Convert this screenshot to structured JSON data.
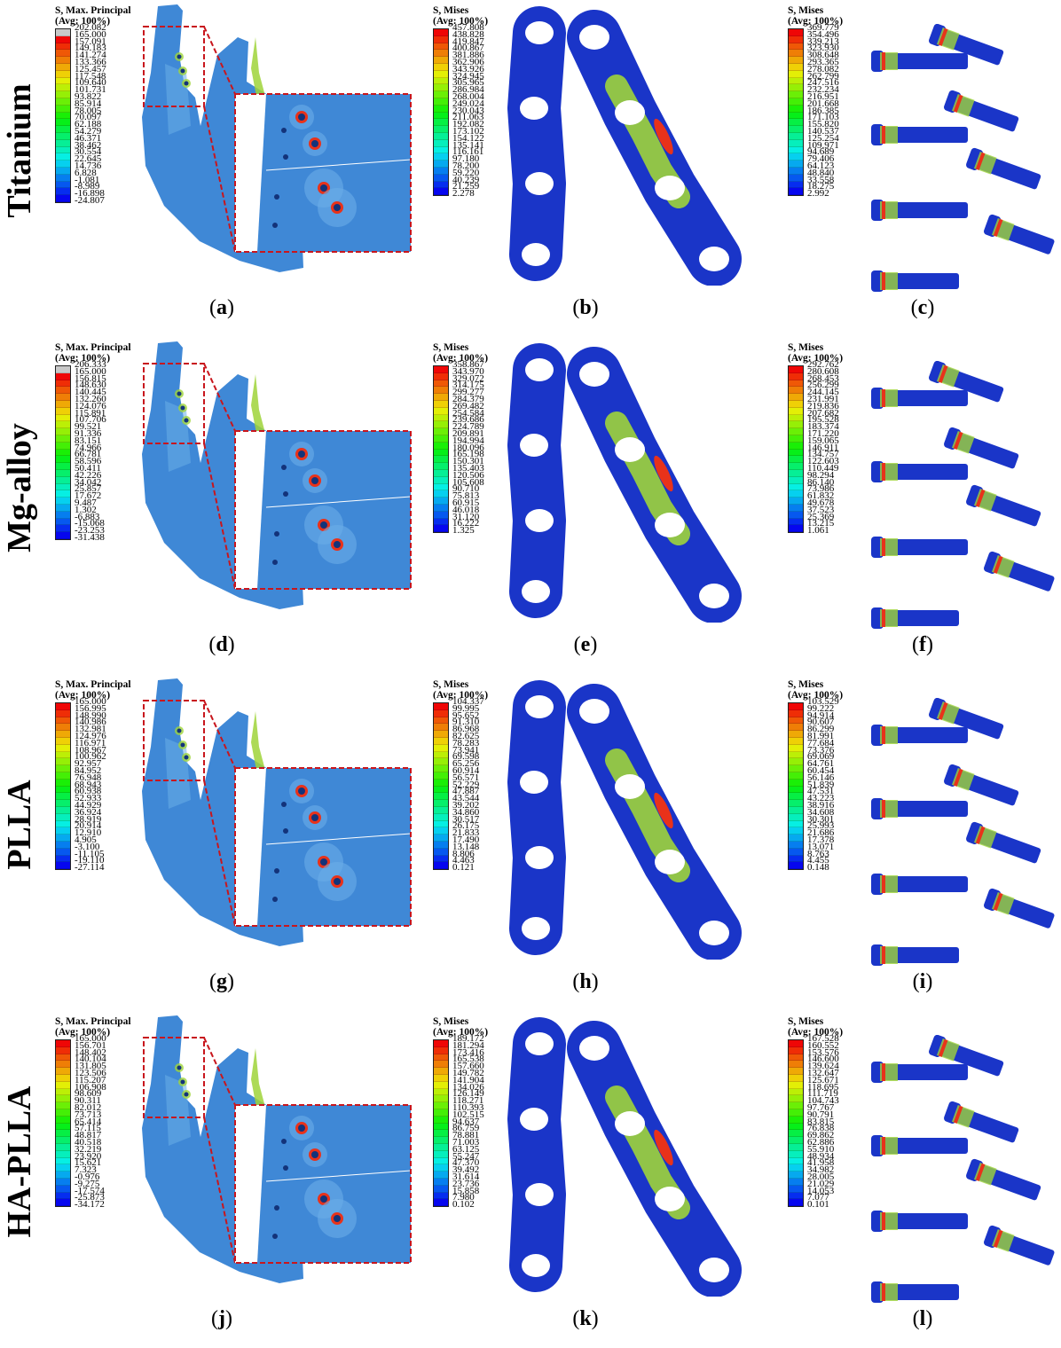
{
  "rows": [
    {
      "label": "Titanium",
      "panels": [
        {
          "letter": "a",
          "legend": {
            "title1": "S, Max. Principal",
            "title2": "(Avg: 100%)",
            "values": [
              "202.082",
              "165.000",
              "157.091",
              "149.183",
              "141.274",
              "133.366",
              "125.457",
              "117.548",
              "109.640",
              "101.731",
              "93.822",
              "85.914",
              "78.005",
              "70.097",
              "62.188",
              "54.279",
              "46.371",
              "38.462",
              "30.554",
              "22.645",
              "14.736",
              "6.828",
              "-1.081",
              "-8.989",
              "-16.898",
              "-24.807"
            ]
          }
        },
        {
          "letter": "b",
          "legend": {
            "title1": "S, Mises",
            "title2": "(Avg: 100%)",
            "values": [
              "457.808",
              "438.828",
              "419.847",
              "400.867",
              "381.886",
              "362.906",
              "343.926",
              "324.945",
              "305.965",
              "286.984",
              "268.004",
              "249.024",
              "230.043",
              "211.063",
              "192.082",
              "173.102",
              "154.122",
              "135.141",
              "116.161",
              "97.180",
              "78.200",
              "59.220",
              "40.239",
              "21.259",
              "2.278"
            ]
          }
        },
        {
          "letter": "c",
          "legend": {
            "title1": "S, Mises",
            "title2": "(Avg: 100%)",
            "values": [
              "369.779",
              "354.496",
              "339.213",
              "323.930",
              "308.648",
              "293.365",
              "278.082",
              "262.799",
              "247.516",
              "232.234",
              "216.951",
              "201.668",
              "186.385",
              "171.103",
              "155.820",
              "140.537",
              "125.254",
              "109.971",
              "94.689",
              "79.406",
              "64.123",
              "48.840",
              "33.558",
              "18.275",
              "2.992"
            ]
          }
        }
      ]
    },
    {
      "label": "Mg-alloy",
      "panels": [
        {
          "letter": "d",
          "legend": {
            "title1": "S, Max. Principal",
            "title2": "(Avg: 100%)",
            "values": [
              "206.333",
              "165.000",
              "156.815",
              "148.630",
              "140.445",
              "132.260",
              "124.076",
              "115.891",
              "107.706",
              "99.521",
              "91.336",
              "83.151",
              "74.966",
              "66.781",
              "58.596",
              "50.411",
              "42.226",
              "34.042",
              "25.857",
              "17.672",
              "9.487",
              "1.302",
              "-6.883",
              "-15.068",
              "-23.253",
              "-31.438"
            ]
          }
        },
        {
          "letter": "e",
          "legend": {
            "title1": "S, Mises",
            "title2": "(Avg: 100%)",
            "values": [
              "358.867",
              "343.970",
              "329.072",
              "314.175",
              "299.277",
              "284.379",
              "269.482",
              "254.584",
              "239.686",
              "224.789",
              "209.891",
              "194.994",
              "180.096",
              "165.198",
              "150.301",
              "135.403",
              "120.506",
              "105.608",
              "90.710",
              "75.813",
              "60.915",
              "46.018",
              "31.120",
              "16.222",
              "1.325"
            ]
          }
        },
        {
          "letter": "f",
          "legend": {
            "title1": "S, Mises",
            "title2": "(Avg: 100%)",
            "values": [
              "292.762",
              "280.608",
              "268.453",
              "256.299",
              "244.145",
              "231.991",
              "219.836",
              "207.682",
              "195.528",
              "183.374",
              "171.220",
              "159.065",
              "146.911",
              "134.757",
              "122.603",
              "110.449",
              "98.294",
              "86.140",
              "73.986",
              "61.832",
              "49.678",
              "37.523",
              "25.369",
              "13.215",
              "1.061"
            ]
          }
        }
      ]
    },
    {
      "label": "PLLA",
      "panels": [
        {
          "letter": "g",
          "legend": {
            "title1": "S, Max. Principal",
            "title2": "(Avg: 100%)",
            "values": [
              "165.000",
              "156.995",
              "148.990",
              "140.986",
              "132.981",
              "124.976",
              "116.971",
              "108.967",
              "100.962",
              "92.957",
              "84.952",
              "76.948",
              "68.943",
              "60.938",
              "52.933",
              "44.929",
              "36.924",
              "28.919",
              "20.914",
              "12.910",
              "4.905",
              "-3.100",
              "-11.105",
              "-19.110",
              "-27.114"
            ]
          }
        },
        {
          "letter": "h",
          "legend": {
            "title1": "S, Mises",
            "title2": "(Avg: 100%)",
            "values": [
              "104.337",
              "99.995",
              "95.652",
              "91.310",
              "86.968",
              "82.625",
              "78.283",
              "73.941",
              "69.598",
              "65.256",
              "60.914",
              "56.571",
              "52.229",
              "47.887",
              "43.544",
              "39.202",
              "34.860",
              "30.517",
              "26.175",
              "21.833",
              "17.490",
              "13.148",
              "8.806",
              "4.463",
              "0.121"
            ]
          }
        },
        {
          "letter": "i",
          "legend": {
            "title1": "S, Mises",
            "title2": "(Avg: 100%)",
            "values": [
              "103.529",
              "99.222",
              "94.914",
              "90.607",
              "86.299",
              "81.991",
              "77.684",
              "73.376",
              "69.069",
              "64.761",
              "60.454",
              "56.146",
              "51.839",
              "47.531",
              "43.223",
              "38.916",
              "34.608",
              "30.301",
              "25.993",
              "21.686",
              "17.378",
              "13.071",
              "8.763",
              "4.455",
              "0.148"
            ]
          }
        }
      ]
    },
    {
      "label": "HA-PLLA",
      "panels": [
        {
          "letter": "j",
          "legend": {
            "title1": "S, Max. Principal",
            "title2": "(Avg: 100%)",
            "values": [
              "165.000",
              "156.701",
              "148.402",
              "140.104",
              "131.805",
              "123.506",
              "115.207",
              "106.908",
              "98.609",
              "90.311",
              "82.012",
              "73.713",
              "65.414",
              "57.115",
              "48.817",
              "40.518",
              "32.219",
              "23.920",
              "15.621",
              "7.323",
              "-0.976",
              "-9.275",
              "-17.574",
              "-25.873",
              "-34.172"
            ]
          }
        },
        {
          "letter": "k",
          "legend": {
            "title1": "S, Mises",
            "title2": "(Avg: 100%)",
            "values": [
              "189.172",
              "181.294",
              "173.416",
              "165.538",
              "157.660",
              "149.782",
              "141.904",
              "134.026",
              "126.149",
              "118.271",
              "110.393",
              "102.515",
              "94.637",
              "86.759",
              "78.881",
              "71.003",
              "63.125",
              "55.247",
              "47.370",
              "39.492",
              "31.614",
              "23.736",
              "15.858",
              "7.980",
              "0.102"
            ]
          }
        },
        {
          "letter": "l",
          "legend": {
            "title1": "S, Mises",
            "title2": "(Avg: 100%)",
            "values": [
              "167.528",
              "160.552",
              "153.576",
              "146.600",
              "139.624",
              "132.647",
              "125.671",
              "118.695",
              "111.719",
              "104.743",
              "97.767",
              "90.791",
              "83.815",
              "76.838",
              "69.862",
              "62.886",
              "55.910",
              "48.934",
              "41.958",
              "34.982",
              "28.005",
              "21.029",
              "14.053",
              "7.077",
              "0.101"
            ]
          }
        }
      ]
    }
  ],
  "colors": {
    "bone": "#3f88d6",
    "bone_light": "#6aaee8",
    "zoom_box": "#c8161d",
    "plate_blue": "#1a35c8",
    "hot": "#e8321a",
    "warm": "#9fd43a"
  }
}
